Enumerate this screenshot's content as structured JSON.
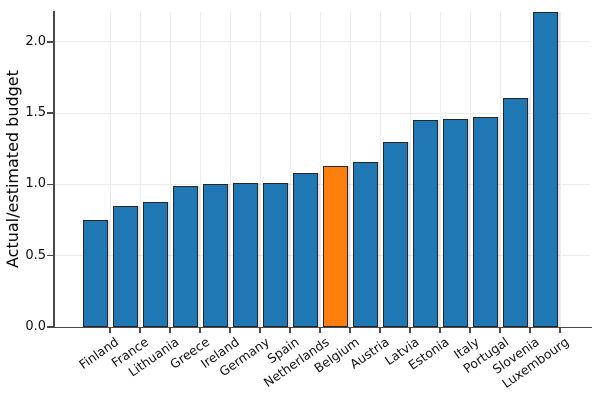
{
  "chart_data": {
    "type": "bar",
    "title": "",
    "xlabel": "",
    "ylabel": "Actual/estimated budget",
    "categories": [
      "Finland",
      "France",
      "Lithuania",
      "Greece",
      "Ireland",
      "Germany",
      "Spain",
      "Netherlands",
      "Belgium",
      "Austria",
      "Latvia",
      "Estonia",
      "Italy",
      "Portugal",
      "Slovenia",
      "Luxembourg"
    ],
    "values": [
      0.75,
      0.85,
      0.88,
      0.99,
      1.0,
      1.01,
      1.01,
      1.08,
      1.13,
      1.16,
      1.3,
      1.45,
      1.46,
      1.47,
      1.61,
      2.21
    ],
    "highlight_category": "Belgium",
    "highlight_index": 8,
    "bar_color": "#1f77b4",
    "highlight_color": "#ff7f0e",
    "bar_edge_color": "#262626",
    "grid": true,
    "legend": "none",
    "ylim": [
      0,
      2.21
    ],
    "yticks": [
      0.0,
      0.5,
      1.0,
      1.5,
      2.0
    ],
    "ytick_labels": [
      "0.0",
      "0.5",
      "1.0",
      "1.5",
      "2.0"
    ]
  }
}
